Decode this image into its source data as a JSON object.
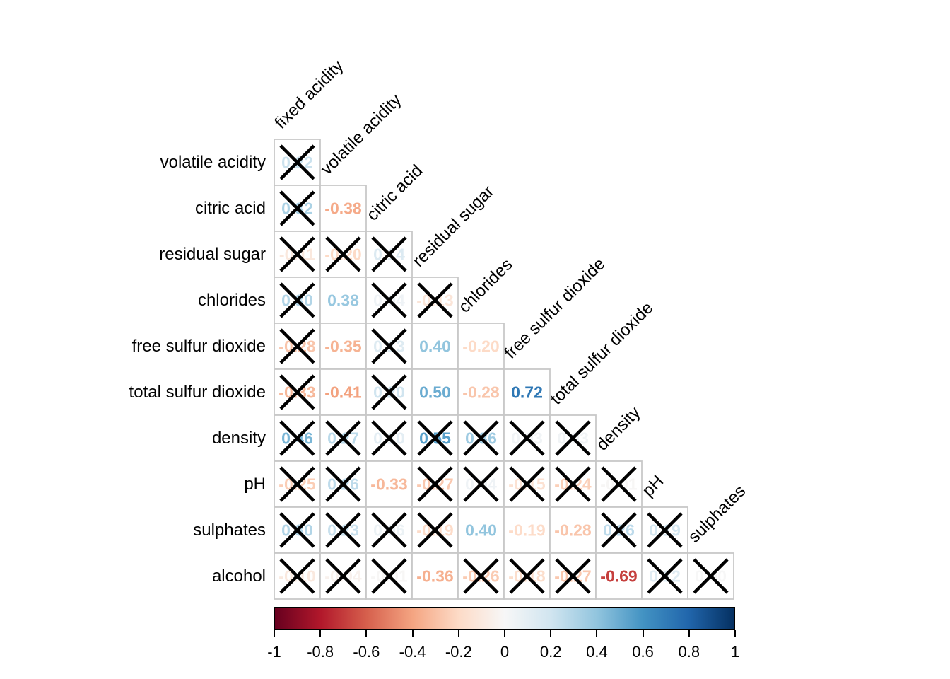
{
  "chart_data": {
    "type": "heatmap",
    "subtype": "correlation-matrix-lower-triangle",
    "variables": [
      "fixed acidity",
      "volatile acidity",
      "citric acid",
      "residual sugar",
      "chlorides",
      "free sulfur dioxide",
      "total sulfur dioxide",
      "density",
      "pH",
      "sulphates",
      "alcohol"
    ],
    "column_labels": [
      "fixed acidity",
      "volatile acidity",
      "citric acid",
      "residual sugar",
      "chlorides",
      "free sulfur dioxide",
      "total sulfur dioxide",
      "density",
      "pH",
      "sulphates"
    ],
    "row_labels": [
      "volatile acidity",
      "citric acid",
      "residual sugar",
      "chlorides",
      "free sulfur dioxide",
      "total sulfur dioxide",
      "density",
      "pH",
      "sulphates",
      "alcohol"
    ],
    "matrix": [
      {
        "row": "volatile acidity",
        "cells": [
          {
            "col": "fixed acidity",
            "value": 0.22,
            "label": "0.22",
            "crossed": true
          }
        ]
      },
      {
        "row": "citric acid",
        "cells": [
          {
            "col": "fixed acidity",
            "value": 0.32,
            "label": "0.32",
            "crossed": true
          },
          {
            "col": "volatile acidity",
            "value": -0.38,
            "label": "-0.38",
            "crossed": false
          }
        ]
      },
      {
        "row": "residual sugar",
        "cells": [
          {
            "col": "fixed acidity",
            "value": -0.11,
            "label": "-0.11",
            "crossed": true
          },
          {
            "col": "volatile acidity",
            "value": -0.2,
            "label": "-0.20",
            "crossed": true
          },
          {
            "col": "citric acid",
            "value": 0.14,
            "label": "0.14",
            "crossed": true
          }
        ]
      },
      {
        "row": "chlorides",
        "cells": [
          {
            "col": "fixed acidity",
            "value": 0.3,
            "label": "0.30",
            "crossed": true
          },
          {
            "col": "volatile acidity",
            "value": 0.38,
            "label": "0.38",
            "crossed": false
          },
          {
            "col": "citric acid",
            "value": 0.04,
            "label": "0.04",
            "crossed": true
          },
          {
            "col": "residual sugar",
            "value": -0.13,
            "label": "-0.13",
            "crossed": true
          }
        ]
      },
      {
        "row": "free sulfur dioxide",
        "cells": [
          {
            "col": "fixed acidity",
            "value": -0.28,
            "label": "-0.28",
            "crossed": true
          },
          {
            "col": "volatile acidity",
            "value": -0.35,
            "label": "-0.35",
            "crossed": false
          },
          {
            "col": "citric acid",
            "value": 0.13,
            "label": "0.13",
            "crossed": true
          },
          {
            "col": "residual sugar",
            "value": 0.4,
            "label": "0.40",
            "crossed": false
          },
          {
            "col": "chlorides",
            "value": -0.2,
            "label": "-0.20",
            "crossed": false
          }
        ]
      },
      {
        "row": "total sulfur dioxide",
        "cells": [
          {
            "col": "fixed acidity",
            "value": -0.33,
            "label": "-0.33",
            "crossed": true
          },
          {
            "col": "volatile acidity",
            "value": -0.41,
            "label": "-0.41",
            "crossed": false
          },
          {
            "col": "citric acid",
            "value": 0.2,
            "label": "0.20",
            "crossed": true
          },
          {
            "col": "residual sugar",
            "value": 0.5,
            "label": "0.50",
            "crossed": false
          },
          {
            "col": "chlorides",
            "value": -0.28,
            "label": "-0.28",
            "crossed": false
          },
          {
            "col": "free sulfur dioxide",
            "value": 0.72,
            "label": "0.72",
            "crossed": false
          }
        ]
      },
      {
        "row": "density",
        "cells": [
          {
            "col": "fixed acidity",
            "value": 0.46,
            "label": "0.46",
            "crossed": true
          },
          {
            "col": "volatile acidity",
            "value": 0.27,
            "label": "0.27",
            "crossed": true
          },
          {
            "col": "citric acid",
            "value": 0.1,
            "label": "0.10",
            "crossed": true
          },
          {
            "col": "residual sugar",
            "value": 0.55,
            "label": "0.55",
            "crossed": true
          },
          {
            "col": "chlorides",
            "value": 0.36,
            "label": "0.36",
            "crossed": true
          },
          {
            "col": "free sulfur dioxide",
            "value": 0.03,
            "label": "0.03",
            "crossed": true
          },
          {
            "col": "total sulfur dioxide",
            "value": 0.03,
            "label": "0.03",
            "crossed": true
          }
        ]
      },
      {
        "row": "pH",
        "cells": [
          {
            "col": "fixed acidity",
            "value": -0.25,
            "label": "-0.25",
            "crossed": true
          },
          {
            "col": "volatile acidity",
            "value": 0.26,
            "label": "0.26",
            "crossed": true
          },
          {
            "col": "citric acid",
            "value": -0.33,
            "label": "-0.33",
            "crossed": false
          },
          {
            "col": "residual sugar",
            "value": -0.27,
            "label": "-0.27",
            "crossed": true
          },
          {
            "col": "chlorides",
            "value": 0.04,
            "label": "0.04",
            "crossed": true
          },
          {
            "col": "free sulfur dioxide",
            "value": -0.15,
            "label": "-0.15",
            "crossed": true
          },
          {
            "col": "total sulfur dioxide",
            "value": -0.24,
            "label": "-0.24",
            "crossed": true
          },
          {
            "col": "density",
            "value": -0.01,
            "label": "-0.01",
            "crossed": true
          }
        ]
      },
      {
        "row": "sulphates",
        "cells": [
          {
            "col": "fixed acidity",
            "value": 0.3,
            "label": "0.30",
            "crossed": true
          },
          {
            "col": "volatile acidity",
            "value": 0.23,
            "label": "0.23",
            "crossed": true
          },
          {
            "col": "citric acid",
            "value": 0.06,
            "label": "0.06",
            "crossed": true
          },
          {
            "col": "residual sugar",
            "value": -0.19,
            "label": "-0.19",
            "crossed": true
          },
          {
            "col": "chlorides",
            "value": 0.4,
            "label": "0.40",
            "crossed": false
          },
          {
            "col": "free sulfur dioxide",
            "value": -0.19,
            "label": "-0.19",
            "crossed": false
          },
          {
            "col": "total sulfur dioxide",
            "value": -0.28,
            "label": "-0.28",
            "crossed": false
          },
          {
            "col": "density",
            "value": 0.26,
            "label": "0.26",
            "crossed": true
          },
          {
            "col": "pH",
            "value": 0.19,
            "label": "0.19",
            "crossed": true
          }
        ]
      },
      {
        "row": "alcohol",
        "cells": [
          {
            "col": "fixed acidity",
            "value": -0.1,
            "label": "-0.10",
            "crossed": true
          },
          {
            "col": "volatile acidity",
            "value": -0.04,
            "label": "-0.04",
            "crossed": true
          },
          {
            "col": "citric acid",
            "value": -0.01,
            "label": "-0.01",
            "crossed": true
          },
          {
            "col": "residual sugar",
            "value": -0.36,
            "label": "-0.36",
            "crossed": false
          },
          {
            "col": "chlorides",
            "value": -0.26,
            "label": "-0.26",
            "crossed": true
          },
          {
            "col": "free sulfur dioxide",
            "value": -0.18,
            "label": "-0.18",
            "crossed": true
          },
          {
            "col": "total sulfur dioxide",
            "value": -0.27,
            "label": "-0.27",
            "crossed": true
          },
          {
            "col": "density",
            "value": -0.69,
            "label": "-0.69",
            "crossed": false
          },
          {
            "col": "pH",
            "value": 0.12,
            "label": "0.12",
            "crossed": true
          },
          {
            "col": "sulphates",
            "value": 0.0,
            "label": "0.00",
            "crossed": true
          }
        ]
      }
    ],
    "colorbar": {
      "min": -1,
      "max": 1,
      "tick_labels": [
        "-1",
        "-0.8",
        "-0.6",
        "-0.4",
        "-0.2",
        "0",
        "0.2",
        "0.4",
        "0.6",
        "0.8",
        "1"
      ],
      "palette_stops": [
        "#67001F",
        "#B2182B",
        "#D6604D",
        "#F4A582",
        "#FDDBC7",
        "#F7F7F7",
        "#D1E5F0",
        "#92C5DE",
        "#4393C3",
        "#2166AC",
        "#053061"
      ]
    },
    "colors": {
      "grid": "#c8c8c8",
      "cross": "#000000",
      "label_text": "#000000",
      "background": "#ffffff"
    },
    "layout_hints": {
      "legend_position": "bottom",
      "grid": "cell outlines only",
      "value_display": "colored numbers, black X over crossed cells"
    }
  }
}
